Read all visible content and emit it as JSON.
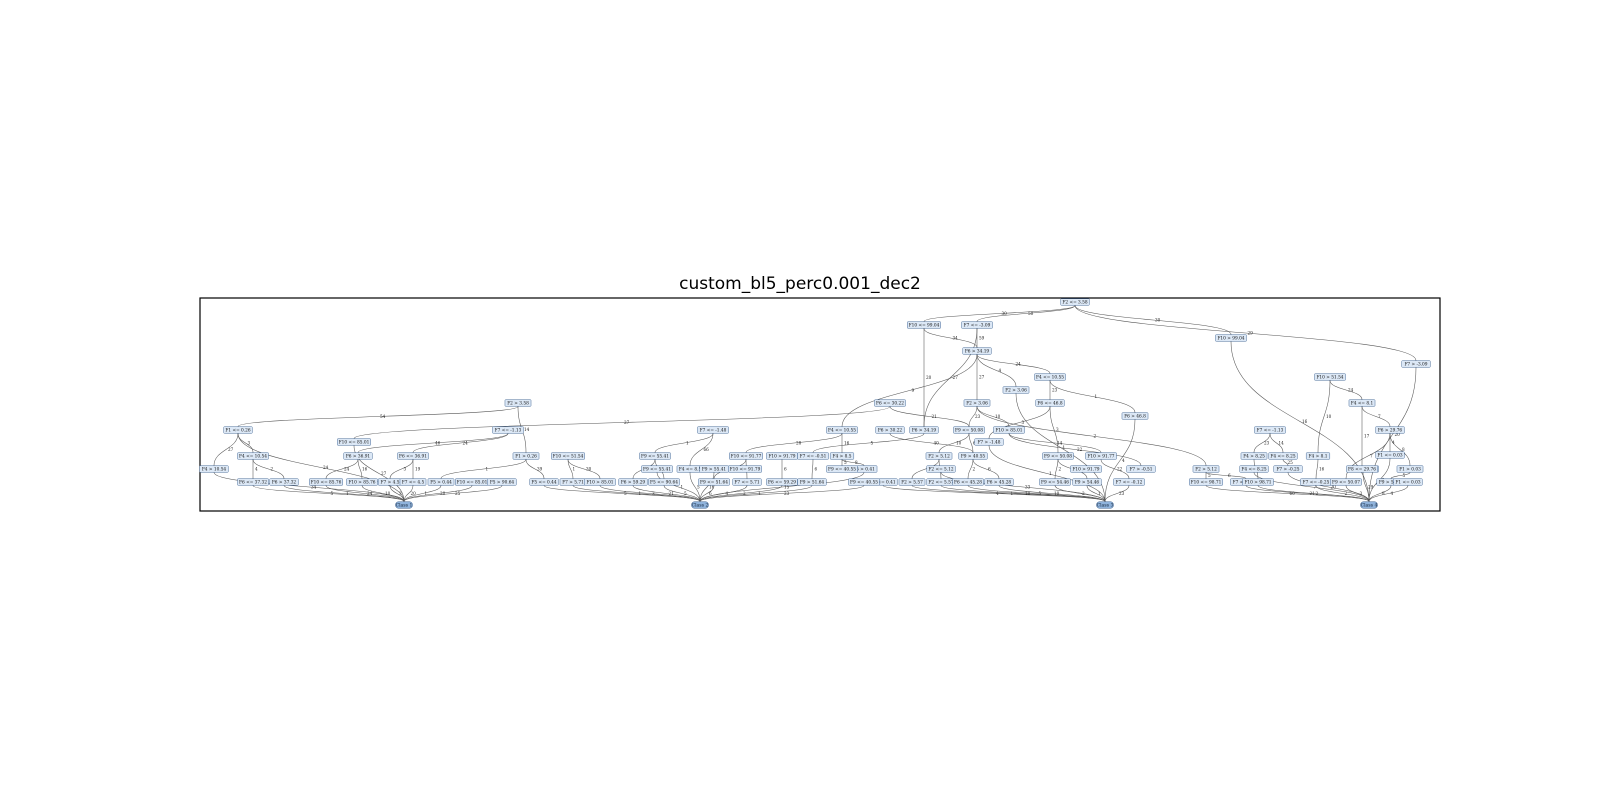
{
  "title": "custom_bl5_perc0.001_dec2",
  "nodes": [
    {
      "id": "r",
      "label": "F2 <= 3.58"
    },
    {
      "id": "a1",
      "label": "F10 <= 99.04"
    },
    {
      "id": "a2",
      "label": "F7 <= -3.09"
    },
    {
      "id": "a3",
      "label": "F10 > 99.04"
    },
    {
      "id": "a4",
      "label": "F7 > -3.09"
    },
    {
      "id": "b1",
      "label": "F6 > 34.19"
    },
    {
      "id": "b2",
      "label": "F4 <= 10.55"
    },
    {
      "id": "b3",
      "label": "F2 > 3.06"
    },
    {
      "id": "b4",
      "label": "F10 > 51.54"
    },
    {
      "id": "b5",
      "label": "F4 <= 8.1"
    },
    {
      "id": "c1",
      "label": "F2 > 3.58"
    },
    {
      "id": "c2",
      "label": "F6 <= 30.22"
    },
    {
      "id": "c3",
      "label": "F2 > 3.06"
    },
    {
      "id": "c4",
      "label": "F6 <= 46.8"
    },
    {
      "id": "c5",
      "label": "F6 > 46.8"
    },
    {
      "id": "c6",
      "label": "F6 > 29.76"
    },
    {
      "id": "d1",
      "label": "F1 <= 0.26"
    },
    {
      "id": "d2",
      "label": "F7 <= -1.13"
    },
    {
      "id": "d3",
      "label": "F10 <= 85.01"
    },
    {
      "id": "d4",
      "label": "F7 <= -1.48"
    },
    {
      "id": "d5",
      "label": "F4 <= 10.55"
    },
    {
      "id": "d6",
      "label": "F6 > 30.22"
    },
    {
      "id": "d7",
      "label": "F6 > 34.19"
    },
    {
      "id": "d8",
      "label": "F9 <= 50.08"
    },
    {
      "id": "d9",
      "label": "F10 > 85.01"
    },
    {
      "id": "d10",
      "label": "F7 > -1.48"
    },
    {
      "id": "d11",
      "label": "F7 <= -1.13"
    },
    {
      "id": "d12",
      "label": "F1 <= 0.03"
    },
    {
      "id": "e1",
      "label": "F4 <= 10.54"
    },
    {
      "id": "e2",
      "label": "F6 > 36.91"
    },
    {
      "id": "e3",
      "label": "F6 <= 36.91"
    },
    {
      "id": "e4",
      "label": "F1 > 0.26"
    },
    {
      "id": "e5",
      "label": "F10 <= 51.54"
    },
    {
      "id": "e6",
      "label": "F9 <= 55.41"
    },
    {
      "id": "e7",
      "label": "F10 <= 91.77"
    },
    {
      "id": "e8",
      "label": "F10 > 91.79"
    },
    {
      "id": "e9",
      "label": "F7 <= -0.51"
    },
    {
      "id": "e10",
      "label": "F4 > 8.5"
    },
    {
      "id": "e11",
      "label": "F2 > 5.12"
    },
    {
      "id": "e12",
      "label": "F9 > 40.55"
    },
    {
      "id": "e13",
      "label": "F9 <= 50.08"
    },
    {
      "id": "e14",
      "label": "F10 > 91.77"
    },
    {
      "id": "e15",
      "label": "F7 > -0.51"
    },
    {
      "id": "e16",
      "label": "F2 > 5.12"
    },
    {
      "id": "e17",
      "label": "F4 > 8.25"
    },
    {
      "id": "e18",
      "label": "F4 <= 8.25"
    },
    {
      "id": "e19",
      "label": "F4 > 8.1"
    },
    {
      "id": "e20",
      "label": "F6 > 29.76"
    },
    {
      "id": "e21",
      "label": "F1 > 0.03"
    },
    {
      "id": "f1",
      "label": "F4 > 10.54"
    },
    {
      "id": "f2",
      "label": "F6 <= 37.32"
    },
    {
      "id": "f3",
      "label": "F6 > 37.32"
    },
    {
      "id": "f4",
      "label": "F10 <= 85.76"
    },
    {
      "id": "f5",
      "label": "F10 > 85.76"
    },
    {
      "id": "f6",
      "label": "F7 > 4.5"
    },
    {
      "id": "f7",
      "label": "F7 <= 4.5"
    },
    {
      "id": "f8",
      "label": "F5 > 0.44"
    },
    {
      "id": "f9",
      "label": "F10 <= 85.01"
    },
    {
      "id": "f10",
      "label": "F5 > 90.64"
    },
    {
      "id": "f11",
      "label": "F5 <= 0.44"
    },
    {
      "id": "f12",
      "label": "F7 > 5.71"
    },
    {
      "id": "f13",
      "label": "F10 > 85.01"
    },
    {
      "id": "f14",
      "label": "F6 > 59.29"
    },
    {
      "id": "f15",
      "label": "F5 <= 90.64"
    },
    {
      "id": "f16",
      "label": "F4 <= 8.5"
    },
    {
      "id": "f17",
      "label": "F9 > 55.41"
    },
    {
      "id": "f18",
      "label": "F9 <= 51.64"
    },
    {
      "id": "f19",
      "label": "F7 <= 5.71"
    },
    {
      "id": "f20",
      "label": "F6 <= 59.29"
    },
    {
      "id": "f21",
      "label": "F9 > 51.64"
    },
    {
      "id": "f22",
      "label": "F5 > 0.41"
    },
    {
      "id": "f23",
      "label": "F5 <= 0.41"
    },
    {
      "id": "f24",
      "label": "F2 > 5.57"
    },
    {
      "id": "f25",
      "label": "F2 <= 5.57"
    },
    {
      "id": "f26",
      "label": "F6 <= 45.28"
    },
    {
      "id": "f27",
      "label": "F6 > 45.28"
    },
    {
      "id": "f28",
      "label": "F9 <= 54.46"
    },
    {
      "id": "f29",
      "label": "F9 > 54.46"
    },
    {
      "id": "f30",
      "label": "F7 <= -0.12"
    },
    {
      "id": "f31",
      "label": "F10 <= 98.71"
    },
    {
      "id": "f32",
      "label": "F7 <= -0.23"
    },
    {
      "id": "f33",
      "label": "F10 > 98.71"
    },
    {
      "id": "f34",
      "label": "F7 > -0.25"
    },
    {
      "id": "f35",
      "label": "F7 <= -0.25"
    },
    {
      "id": "f36",
      "label": "F6 <= 29.76"
    },
    {
      "id": "f37",
      "label": "F9 <= 50.07"
    },
    {
      "id": "f38",
      "label": "F9 > 50.07"
    },
    {
      "id": "g1",
      "label": "F9 <= 55.41"
    },
    {
      "id": "g2",
      "label": "F10 <= 91.79"
    },
    {
      "id": "g3",
      "label": "F9 <= 40.55"
    },
    {
      "id": "g4",
      "label": "F9 <= 40.55"
    },
    {
      "id": "g5",
      "label": "F10 > 91.79"
    },
    {
      "id": "g6",
      "label": "F2 <= 5.12"
    },
    {
      "id": "g7",
      "label": "F4 <= 8.25"
    },
    {
      "id": "g8",
      "label": "F8 <= 29.76"
    },
    {
      "id": "g9",
      "label": "F1 <= 0.03"
    },
    {
      "id": "c_1",
      "label": "Class 1"
    },
    {
      "id": "c_2",
      "label": "Class 2"
    },
    {
      "id": "c_3",
      "label": "Class 3"
    },
    {
      "id": "c_4",
      "label": "Class 4"
    }
  ],
  "edges": [
    {
      "from": "r",
      "to": "a1",
      "label": "30"
    },
    {
      "from": "r",
      "to": "a2",
      "label": "50"
    },
    {
      "from": "r",
      "to": "a3",
      "label": "30"
    },
    {
      "from": "r",
      "to": "a4",
      "label": "29"
    },
    {
      "from": "a1",
      "to": "b1",
      "label": "34"
    },
    {
      "from": "a1",
      "to": "d7",
      "label": "20"
    },
    {
      "from": "a2",
      "to": "b1",
      "label": "59"
    },
    {
      "from": "a2",
      "to": "d7",
      "label": "27"
    },
    {
      "from": "a3",
      "to": "c_4",
      "label": "16"
    },
    {
      "from": "a4",
      "to": "c_4",
      "label": "20"
    },
    {
      "from": "b1",
      "to": "b2",
      "label": "24"
    },
    {
      "from": "b1",
      "to": "b3",
      "label": "4"
    },
    {
      "from": "b1",
      "to": "c3",
      "label": "27"
    },
    {
      "from": "b1",
      "to": "d5",
      "label": "9"
    },
    {
      "from": "b2",
      "to": "c4",
      "label": "23"
    },
    {
      "from": "b2",
      "to": "c5",
      "label": "1"
    },
    {
      "from": "b3",
      "to": "c_3",
      "label": "1"
    },
    {
      "from": "b4",
      "to": "b5",
      "label": "24"
    },
    {
      "from": "b4",
      "to": "e19",
      "label": "10"
    },
    {
      "from": "b5",
      "to": "c6",
      "label": "7"
    },
    {
      "from": "b5",
      "to": "g8",
      "label": "17"
    },
    {
      "from": "c1",
      "to": "d1",
      "label": "54"
    },
    {
      "from": "c1",
      "to": "e4",
      "label": "14"
    },
    {
      "from": "c2",
      "to": "d3",
      "label": "27"
    },
    {
      "from": "c2",
      "to": "d8",
      "label": "21"
    },
    {
      "from": "c3",
      "to": "d8",
      "label": "23"
    },
    {
      "from": "c3",
      "to": "d9",
      "label": "10"
    },
    {
      "from": "c3",
      "to": "e16",
      "label": "2"
    },
    {
      "from": "c4",
      "to": "e13",
      "label": "3"
    },
    {
      "from": "c4",
      "to": "d10",
      "label": "3"
    },
    {
      "from": "c5",
      "to": "c_3",
      "label": "4"
    },
    {
      "from": "c6",
      "to": "d12",
      "label": "4"
    },
    {
      "from": "c6",
      "to": "e21",
      "label": "8"
    },
    {
      "from": "d1",
      "to": "c_1",
      "label": "24"
    },
    {
      "from": "d1",
      "to": "e1",
      "label": "3"
    },
    {
      "from": "d1",
      "to": "f1",
      "label": "27"
    },
    {
      "from": "d2",
      "to": "e2",
      "label": "46"
    },
    {
      "from": "d2",
      "to": "e3",
      "label": "24"
    },
    {
      "from": "d3",
      "to": "c_1",
      "label": "27"
    },
    {
      "from": "d4",
      "to": "e6",
      "label": "1"
    },
    {
      "from": "d4",
      "to": "f16",
      "label": "66"
    },
    {
      "from": "d5",
      "to": "e7",
      "label": "28"
    },
    {
      "from": "d5",
      "to": "e10",
      "label": "16"
    },
    {
      "from": "d6",
      "to": "e12",
      "label": "40"
    },
    {
      "from": "d7",
      "to": "e9",
      "label": "5"
    },
    {
      "from": "d8",
      "to": "e11",
      "label": "10"
    },
    {
      "from": "d8",
      "to": "e12",
      "label": "6"
    },
    {
      "from": "d9",
      "to": "e14",
      "label": "14"
    },
    {
      "from": "d9",
      "to": "e15",
      "label": "22"
    },
    {
      "from": "d10",
      "to": "c_3",
      "label": "1"
    },
    {
      "from": "d11",
      "to": "e17",
      "label": "23"
    },
    {
      "from": "d11",
      "to": "e18",
      "label": "14"
    },
    {
      "from": "d12",
      "to": "c_4",
      "label": "6"
    },
    {
      "from": "e1",
      "to": "f2",
      "label": "4"
    },
    {
      "from": "e1",
      "to": "f3",
      "label": "2"
    },
    {
      "from": "e2",
      "to": "f4",
      "label": "24"
    },
    {
      "from": "e2",
      "to": "f5",
      "label": "16"
    },
    {
      "from": "e3",
      "to": "f6",
      "label": "3"
    },
    {
      "from": "e3",
      "to": "f7",
      "label": "19"
    },
    {
      "from": "e4",
      "to": "f8",
      "label": "1"
    },
    {
      "from": "e4",
      "to": "f11",
      "label": "39"
    },
    {
      "from": "e5",
      "to": "f12",
      "label": "1"
    },
    {
      "from": "e5",
      "to": "f13",
      "label": "30"
    },
    {
      "from": "e6",
      "to": "f14",
      "label": "1"
    },
    {
      "from": "e6",
      "to": "f15",
      "label": "5"
    },
    {
      "from": "e7",
      "to": "f18",
      "label": "1"
    },
    {
      "from": "e7",
      "to": "f19",
      "label": "25"
    },
    {
      "from": "e8",
      "to": "f20",
      "label": "6"
    },
    {
      "from": "e9",
      "to": "f21",
      "label": "6"
    },
    {
      "from": "e10",
      "to": "f22",
      "label": "8"
    },
    {
      "from": "e10",
      "to": "g4",
      "label": "5"
    },
    {
      "from": "e11",
      "to": "f24",
      "label": "4"
    },
    {
      "from": "e11",
      "to": "f25",
      "label": "10"
    },
    {
      "from": "e12",
      "to": "f26",
      "label": "2"
    },
    {
      "from": "e12",
      "to": "f27",
      "label": "6"
    },
    {
      "from": "e13",
      "to": "f28",
      "label": "2"
    },
    {
      "from": "e13",
      "to": "f29",
      "label": "1"
    },
    {
      "from": "e14",
      "to": "f30",
      "label": "22"
    },
    {
      "from": "e16",
      "to": "f31",
      "label": "5"
    },
    {
      "from": "e16",
      "to": "f32",
      "label": "6"
    },
    {
      "from": "e17",
      "to": "f33",
      "label": "20"
    },
    {
      "from": "e18",
      "to": "f34",
      "label": "25"
    },
    {
      "from": "e19",
      "to": "f35",
      "label": "16"
    },
    {
      "from": "e20",
      "to": "f37",
      "label": "7"
    },
    {
      "from": "e21",
      "to": "f38",
      "label": "5"
    },
    {
      "from": "f1",
      "to": "c_1",
      "label": "34"
    },
    {
      "from": "f2",
      "to": "c_1",
      "label": "5"
    },
    {
      "from": "f3",
      "to": "c_1",
      "label": "1"
    },
    {
      "from": "f4",
      "to": "c_1",
      "label": "24"
    },
    {
      "from": "f5",
      "to": "c_1",
      "label": "10"
    },
    {
      "from": "f6",
      "to": "c_1",
      "label": "3"
    },
    {
      "from": "f7",
      "to": "c_1",
      "label": "20"
    },
    {
      "from": "f8",
      "to": "c_1",
      "label": "1"
    },
    {
      "from": "f9",
      "to": "c_1",
      "label": "20"
    },
    {
      "from": "f10",
      "to": "c_1",
      "label": "25"
    },
    {
      "from": "f11",
      "to": "c_2",
      "label": "5"
    },
    {
      "from": "f12",
      "to": "c_2",
      "label": "1"
    },
    {
      "from": "f13",
      "to": "c_2",
      "label": "3"
    },
    {
      "from": "f14",
      "to": "c_2",
      "label": "21"
    },
    {
      "from": "f15",
      "to": "c_2",
      "label": "5"
    },
    {
      "from": "f16",
      "to": "c_2",
      "label": "5"
    },
    {
      "from": "f17",
      "to": "c_2",
      "label": "16"
    },
    {
      "from": "f18",
      "to": "c_2",
      "label": "6"
    },
    {
      "from": "f19",
      "to": "c_2",
      "label": "4"
    },
    {
      "from": "f20",
      "to": "c_2",
      "label": "2"
    },
    {
      "from": "f21",
      "to": "c_2",
      "label": "1"
    },
    {
      "from": "f22",
      "to": "c_2",
      "label": "15"
    },
    {
      "from": "f23",
      "to": "c_3",
      "label": "4"
    },
    {
      "from": "f24",
      "to": "c_3",
      "label": "1"
    },
    {
      "from": "f25",
      "to": "c_3",
      "label": "10"
    },
    {
      "from": "f26",
      "to": "c_3",
      "label": "5"
    },
    {
      "from": "f27",
      "to": "c_3",
      "label": "10"
    },
    {
      "from": "f28",
      "to": "c_3",
      "label": "2"
    },
    {
      "from": "f29",
      "to": "c_3",
      "label": "1"
    },
    {
      "from": "f30",
      "to": "c_3",
      "label": "23"
    },
    {
      "from": "f31",
      "to": "c_4",
      "label": "60"
    },
    {
      "from": "f32",
      "to": "c_4",
      "label": "21"
    },
    {
      "from": "f33",
      "to": "c_4",
      "label": "2"
    },
    {
      "from": "f34",
      "to": "c_4",
      "label": "20"
    },
    {
      "from": "f35",
      "to": "c_4",
      "label": "2"
    },
    {
      "from": "f36",
      "to": "c_4",
      "label": "29"
    },
    {
      "from": "f37",
      "to": "c_4",
      "label": "3"
    },
    {
      "from": "f38",
      "to": "c_4",
      "label": "8"
    },
    {
      "from": "g1",
      "to": "c_2",
      "label": "1"
    },
    {
      "from": "g3",
      "to": "c_2",
      "label": "23"
    },
    {
      "from": "g6",
      "to": "c_3",
      "label": "33"
    },
    {
      "from": "g7",
      "to": "c_4",
      "label": "7"
    },
    {
      "from": "g8",
      "to": "f36",
      "label": "17"
    },
    {
      "from": "g9",
      "to": "c_4",
      "label": "4"
    }
  ]
}
